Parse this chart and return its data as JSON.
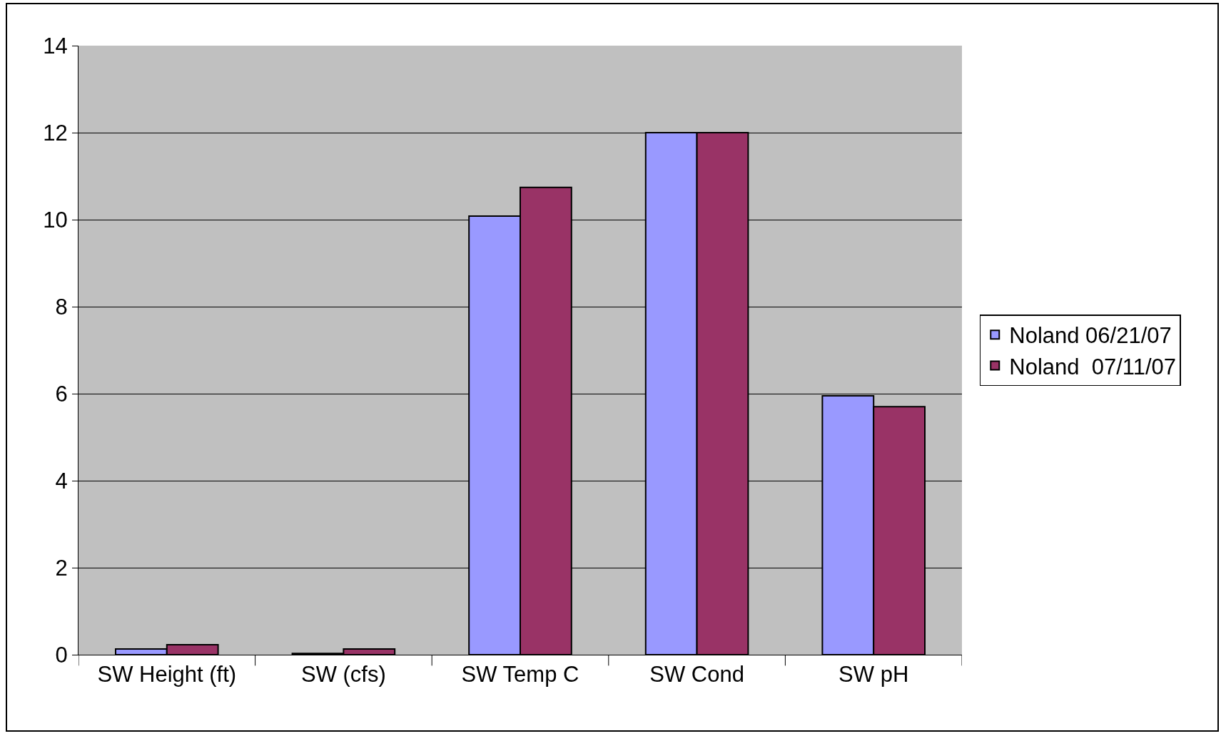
{
  "chart_data": {
    "type": "bar",
    "categories": [
      "SW Height (ft)",
      "SW (cfs)",
      "SW Temp C",
      "SW Cond",
      "SW pH"
    ],
    "series": [
      {
        "name": "Noland 06/21/07",
        "color": "#9999ff",
        "values": [
          0.13,
          0.03,
          10.08,
          12,
          5.95
        ]
      },
      {
        "name": "Noland  07/11/07",
        "color": "#993366",
        "values": [
          0.23,
          0.13,
          10.74,
          12,
          5.7
        ]
      }
    ],
    "ylim": [
      0,
      14
    ],
    "yticks": [
      0,
      2,
      4,
      6,
      8,
      10,
      12,
      14
    ],
    "grid": "y",
    "legend": "right"
  }
}
